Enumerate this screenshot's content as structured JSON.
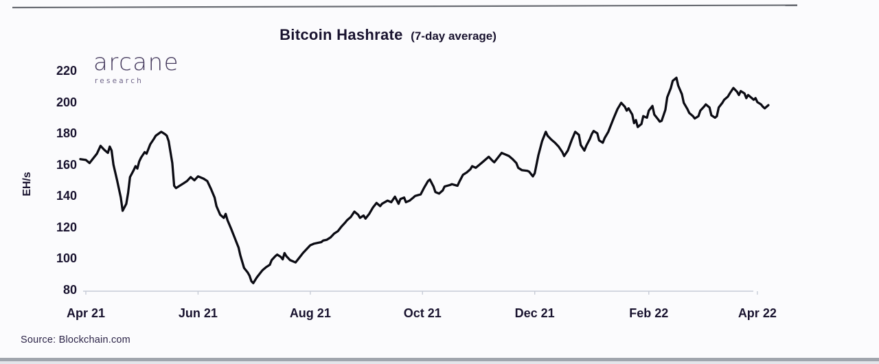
{
  "page": {
    "title": "Bitcoin Hashrate",
    "subtitle": "(7-day average)",
    "source": "Source: Blockchain.com",
    "logo": {
      "name": "arcane",
      "sub": "research"
    }
  },
  "colors": {
    "text": "#18122e",
    "line": "#0b0b13",
    "axis": "#c6cbd6",
    "logo_main": "#463b5e",
    "logo_sub": "#6e6488",
    "top_rule": "#686b72",
    "bottom_bar": "#a0a5ad"
  },
  "chart_data": {
    "type": "line",
    "title": "Bitcoin Hashrate (7-day average)",
    "xlabel": "",
    "ylabel": "EH/s",
    "ylim": [
      80,
      220
    ],
    "yticks": [
      80,
      100,
      120,
      140,
      160,
      180,
      200,
      220
    ],
    "grid": false,
    "legend": "none",
    "source": "Blockchain.com",
    "xticks": [
      {
        "label": "Apr 21",
        "date": "2021-04-01"
      },
      {
        "label": "Jun 21",
        "date": "2021-06-01"
      },
      {
        "label": "Aug 21",
        "date": "2021-08-01"
      },
      {
        "label": "Oct 21",
        "date": "2021-10-01"
      },
      {
        "label": "Dec 21",
        "date": "2021-12-01"
      },
      {
        "label": "Feb 22",
        "date": "2022-02-01"
      },
      {
        "label": "Apr 22",
        "date": "2022-04-01"
      }
    ],
    "series": [
      {
        "name": "Bitcoin hashrate, 7-day average (EH/s)",
        "points": [
          [
            "2021-03-29",
            163.5
          ],
          [
            "2021-04-01",
            163
          ],
          [
            "2021-04-03",
            161
          ],
          [
            "2021-04-05",
            164
          ],
          [
            "2021-04-07",
            167
          ],
          [
            "2021-04-09",
            172
          ],
          [
            "2021-04-11",
            169.5
          ],
          [
            "2021-04-13",
            167.5
          ],
          [
            "2021-04-14",
            171.5
          ],
          [
            "2021-04-15",
            169
          ],
          [
            "2021-04-16",
            160
          ],
          [
            "2021-04-18",
            150
          ],
          [
            "2021-04-20",
            139
          ],
          [
            "2021-04-21",
            130.5
          ],
          [
            "2021-04-23",
            135
          ],
          [
            "2021-04-24",
            142
          ],
          [
            "2021-04-25",
            152
          ],
          [
            "2021-04-27",
            156.5
          ],
          [
            "2021-04-28",
            159
          ],
          [
            "2021-04-29",
            157.5
          ],
          [
            "2021-04-30",
            162
          ],
          [
            "2021-05-01",
            164.5
          ],
          [
            "2021-05-03",
            168
          ],
          [
            "2021-05-04",
            167
          ],
          [
            "2021-05-06",
            173
          ],
          [
            "2021-05-08",
            176.5
          ],
          [
            "2021-05-09",
            178.5
          ],
          [
            "2021-05-12",
            181
          ],
          [
            "2021-05-14",
            179.5
          ],
          [
            "2021-05-15",
            178.5
          ],
          [
            "2021-05-16",
            175
          ],
          [
            "2021-05-18",
            161
          ],
          [
            "2021-05-19",
            146.5
          ],
          [
            "2021-05-20",
            145
          ],
          [
            "2021-05-22",
            146.5
          ],
          [
            "2021-05-24",
            148
          ],
          [
            "2021-05-26",
            149.5
          ],
          [
            "2021-05-28",
            152
          ],
          [
            "2021-05-30",
            150
          ],
          [
            "2021-06-01",
            152.5
          ],
          [
            "2021-06-02",
            152
          ],
          [
            "2021-06-04",
            151
          ],
          [
            "2021-06-06",
            149.5
          ],
          [
            "2021-06-08",
            144.5
          ],
          [
            "2021-06-10",
            139
          ],
          [
            "2021-06-11",
            133.5
          ],
          [
            "2021-06-13",
            128
          ],
          [
            "2021-06-15",
            126
          ],
          [
            "2021-06-16",
            128.5
          ],
          [
            "2021-06-17",
            124.5
          ],
          [
            "2021-06-19",
            119
          ],
          [
            "2021-06-21",
            113
          ],
          [
            "2021-06-23",
            107
          ],
          [
            "2021-06-24",
            102
          ],
          [
            "2021-06-26",
            94
          ],
          [
            "2021-06-28",
            91
          ],
          [
            "2021-06-29",
            89
          ],
          [
            "2021-06-30",
            85.5
          ],
          [
            "2021-07-01",
            84.3
          ],
          [
            "2021-07-03",
            88
          ],
          [
            "2021-07-05",
            91
          ],
          [
            "2021-07-06",
            92.5
          ],
          [
            "2021-07-08",
            94.5
          ],
          [
            "2021-07-10",
            96
          ],
          [
            "2021-07-11",
            99
          ],
          [
            "2021-07-13",
            101.5
          ],
          [
            "2021-07-14",
            102.5
          ],
          [
            "2021-07-16",
            101
          ],
          [
            "2021-07-17",
            99.5
          ],
          [
            "2021-07-18",
            103.5
          ],
          [
            "2021-07-19",
            101.5
          ],
          [
            "2021-07-21",
            99
          ],
          [
            "2021-07-23",
            98
          ],
          [
            "2021-07-24",
            97.5
          ],
          [
            "2021-07-26",
            100.5
          ],
          [
            "2021-07-28",
            103.5
          ],
          [
            "2021-07-30",
            106
          ],
          [
            "2021-08-01",
            108.5
          ],
          [
            "2021-08-03",
            109.5
          ],
          [
            "2021-08-05",
            110
          ],
          [
            "2021-08-07",
            110.5
          ],
          [
            "2021-08-08",
            111.5
          ],
          [
            "2021-08-10",
            112
          ],
          [
            "2021-08-12",
            113.5
          ],
          [
            "2021-08-14",
            116
          ],
          [
            "2021-08-16",
            117.5
          ],
          [
            "2021-08-18",
            120.5
          ],
          [
            "2021-08-20",
            123
          ],
          [
            "2021-08-21",
            124.5
          ],
          [
            "2021-08-23",
            126.5
          ],
          [
            "2021-08-25",
            130
          ],
          [
            "2021-08-27",
            128
          ],
          [
            "2021-08-28",
            126
          ],
          [
            "2021-08-30",
            127.5
          ],
          [
            "2021-08-31",
            125.5
          ],
          [
            "2021-09-02",
            128.5
          ],
          [
            "2021-09-04",
            132.5
          ],
          [
            "2021-09-06",
            135.5
          ],
          [
            "2021-09-08",
            133.5
          ],
          [
            "2021-09-09",
            135
          ],
          [
            "2021-09-12",
            137
          ],
          [
            "2021-09-14",
            136
          ],
          [
            "2021-09-16",
            139.5
          ],
          [
            "2021-09-18",
            135
          ],
          [
            "2021-09-19",
            138
          ],
          [
            "2021-09-21",
            139
          ],
          [
            "2021-09-22",
            136
          ],
          [
            "2021-09-24",
            137
          ],
          [
            "2021-09-26",
            139
          ],
          [
            "2021-09-27",
            140
          ],
          [
            "2021-09-30",
            141
          ],
          [
            "2021-10-02",
            145.5
          ],
          [
            "2021-10-04",
            149.5
          ],
          [
            "2021-10-05",
            150.5
          ],
          [
            "2021-10-07",
            146
          ],
          [
            "2021-10-08",
            142.5
          ],
          [
            "2021-10-10",
            141.5
          ],
          [
            "2021-10-12",
            143.5
          ],
          [
            "2021-10-13",
            146
          ],
          [
            "2021-10-16",
            147
          ],
          [
            "2021-10-17",
            147.5
          ],
          [
            "2021-10-20",
            146.5
          ],
          [
            "2021-10-21",
            149
          ],
          [
            "2021-10-23",
            153.5
          ],
          [
            "2021-10-25",
            155
          ],
          [
            "2021-10-27",
            157
          ],
          [
            "2021-10-28",
            159
          ],
          [
            "2021-10-30",
            158
          ],
          [
            "2021-11-01",
            160
          ],
          [
            "2021-11-03",
            162
          ],
          [
            "2021-11-06",
            165
          ],
          [
            "2021-11-08",
            162.5
          ],
          [
            "2021-11-09",
            161.5
          ],
          [
            "2021-11-11",
            164.5
          ],
          [
            "2021-11-13",
            167.5
          ],
          [
            "2021-11-15",
            166.5
          ],
          [
            "2021-11-17",
            165.5
          ],
          [
            "2021-11-19",
            163.5
          ],
          [
            "2021-11-21",
            161
          ],
          [
            "2021-11-22",
            158
          ],
          [
            "2021-11-24",
            156.5
          ],
          [
            "2021-11-27",
            156
          ],
          [
            "2021-11-28",
            155.5
          ],
          [
            "2021-11-30",
            152.5
          ],
          [
            "2021-12-01",
            154.5
          ],
          [
            "2021-12-03",
            166
          ],
          [
            "2021-12-05",
            175
          ],
          [
            "2021-12-07",
            181
          ],
          [
            "2021-12-08",
            178.5
          ],
          [
            "2021-12-10",
            176
          ],
          [
            "2021-12-12",
            174
          ],
          [
            "2021-12-14",
            171.5
          ],
          [
            "2021-12-16",
            168
          ],
          [
            "2021-12-17",
            165.5
          ],
          [
            "2021-12-19",
            169
          ],
          [
            "2021-12-21",
            175.5
          ],
          [
            "2021-12-23",
            181
          ],
          [
            "2021-12-25",
            179
          ],
          [
            "2021-12-26",
            172.5
          ],
          [
            "2021-12-28",
            169
          ],
          [
            "2021-12-29",
            172
          ],
          [
            "2021-12-31",
            176.5
          ],
          [
            "2022-01-01",
            179.5
          ],
          [
            "2022-01-02",
            181.5
          ],
          [
            "2022-01-04",
            180
          ],
          [
            "2022-01-05",
            175.5
          ],
          [
            "2022-01-07",
            174
          ],
          [
            "2022-01-08",
            177
          ],
          [
            "2022-01-10",
            181
          ],
          [
            "2022-01-11",
            184
          ],
          [
            "2022-01-13",
            190
          ],
          [
            "2022-01-15",
            195.5
          ],
          [
            "2022-01-17",
            199.5
          ],
          [
            "2022-01-19",
            197
          ],
          [
            "2022-01-20",
            194.5
          ],
          [
            "2022-01-21",
            196
          ],
          [
            "2022-01-23",
            192
          ],
          [
            "2022-01-24",
            186.5
          ],
          [
            "2022-01-25",
            188.5
          ],
          [
            "2022-01-26",
            184
          ],
          [
            "2022-01-28",
            186
          ],
          [
            "2022-01-29",
            191
          ],
          [
            "2022-01-31",
            190
          ],
          [
            "2022-02-01",
            194.5
          ],
          [
            "2022-02-03",
            197.5
          ],
          [
            "2022-02-04",
            192
          ],
          [
            "2022-02-06",
            189
          ],
          [
            "2022-02-07",
            187.5
          ],
          [
            "2022-02-08",
            188
          ],
          [
            "2022-02-10",
            195
          ],
          [
            "2022-02-11",
            203
          ],
          [
            "2022-02-13",
            209
          ],
          [
            "2022-02-14",
            213.5
          ],
          [
            "2022-02-16",
            215.5
          ],
          [
            "2022-02-17",
            210.5
          ],
          [
            "2022-02-19",
            205
          ],
          [
            "2022-02-20",
            199.5
          ],
          [
            "2022-02-22",
            195.5
          ],
          [
            "2022-02-23",
            193
          ],
          [
            "2022-02-25",
            191
          ],
          [
            "2022-02-26",
            189.5
          ],
          [
            "2022-02-28",
            191
          ],
          [
            "2022-03-01",
            194.5
          ],
          [
            "2022-03-03",
            197
          ],
          [
            "2022-03-04",
            198.5
          ],
          [
            "2022-03-06",
            196.5
          ],
          [
            "2022-03-07",
            191.5
          ],
          [
            "2022-03-09",
            190
          ],
          [
            "2022-03-10",
            191
          ],
          [
            "2022-03-11",
            196.5
          ],
          [
            "2022-03-13",
            199.5
          ],
          [
            "2022-03-14",
            201.5
          ],
          [
            "2022-03-16",
            203.5
          ],
          [
            "2022-03-17",
            205.5
          ],
          [
            "2022-03-19",
            209
          ],
          [
            "2022-03-21",
            206.5
          ],
          [
            "2022-03-22",
            204.5
          ],
          [
            "2022-03-23",
            207
          ],
          [
            "2022-03-25",
            205.5
          ],
          [
            "2022-03-26",
            202.5
          ],
          [
            "2022-03-27",
            204.5
          ],
          [
            "2022-03-29",
            202.5
          ],
          [
            "2022-03-30",
            201.5
          ],
          [
            "2022-03-31",
            202.5
          ],
          [
            "2022-04-01",
            200
          ],
          [
            "2022-04-03",
            198.5
          ],
          [
            "2022-04-04",
            197
          ],
          [
            "2022-04-05",
            196
          ],
          [
            "2022-04-07",
            198
          ]
        ]
      }
    ]
  }
}
